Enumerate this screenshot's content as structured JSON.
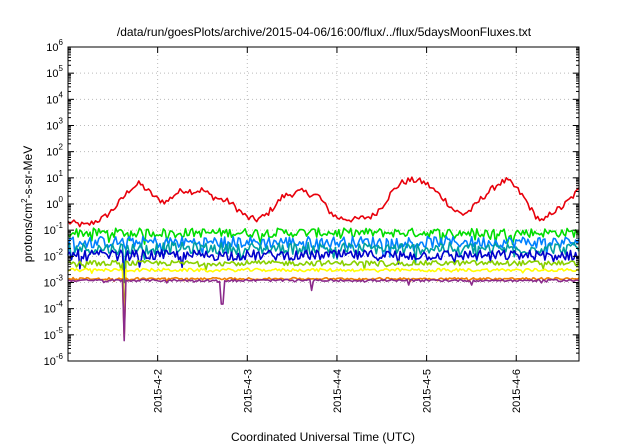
{
  "chart_data": {
    "type": "line",
    "title": "/data/run/goesPlots/archive/2015-04-06/16:00/flux/../flux/5daysMoonFluxes.txt",
    "xlabel": "Coordinated Universal Time (UTC)",
    "ylabel": "protons/cm2-s-sr-MeV",
    "ylabel_parts": {
      "base": "protons/cm",
      "sup": "2",
      "rest": "-s-sr-MeV"
    },
    "yscale": "log",
    "ylim_exp": [
      -6,
      6
    ],
    "ytick_base": "10",
    "yticks_exp": [
      -6,
      -5,
      -4,
      -3,
      -2,
      -1,
      0,
      1,
      2,
      3,
      4,
      5,
      6
    ],
    "xlim_days": [
      0,
      5.7
    ],
    "xticks": [
      {
        "day": 1,
        "label": "2015-4-2"
      },
      {
        "day": 2,
        "label": "2015-4-3"
      },
      {
        "day": 3,
        "label": "2015-4-4"
      },
      {
        "day": 4,
        "label": "2015-4-5"
      },
      {
        "day": 5,
        "label": "2015-4-6"
      }
    ],
    "grid": true,
    "series": [
      {
        "color": "#e8000b",
        "x": [
          0.0,
          0.2,
          0.4,
          0.5,
          0.6,
          0.7,
          0.8,
          0.9,
          1.0,
          1.1,
          1.2,
          1.3,
          1.4,
          1.5,
          1.6,
          1.7,
          1.8,
          1.9,
          2.0,
          2.1,
          2.2,
          2.3,
          2.4,
          2.6,
          2.8,
          2.9,
          3.0,
          3.2,
          3.4,
          3.5,
          3.6,
          3.7,
          3.8,
          3.9,
          4.0,
          4.1,
          4.2,
          4.3,
          4.4,
          4.5,
          4.6,
          4.7,
          4.8,
          4.9,
          5.0,
          5.1,
          5.2,
          5.3,
          5.4,
          5.5,
          5.6,
          5.7
        ],
        "y": [
          0.2,
          0.15,
          0.3,
          0.6,
          1.5,
          4,
          6,
          3,
          1.5,
          1.2,
          2.5,
          3.5,
          3,
          3.5,
          2,
          1.5,
          1.2,
          0.6,
          0.3,
          0.25,
          0.35,
          0.8,
          2,
          3,
          2,
          0.6,
          0.3,
          0.25,
          0.35,
          0.8,
          2.5,
          6,
          8,
          8,
          6,
          3,
          1.5,
          0.6,
          0.4,
          0.6,
          1.5,
          3,
          6,
          8,
          4,
          1.5,
          0.4,
          0.2,
          0.5,
          0.7,
          1.5,
          3.5
        ]
      },
      {
        "color": "#00dd00",
        "base": 0.08,
        "spread": 0.35,
        "dips": []
      },
      {
        "color": "#0080ff",
        "base": 0.035,
        "spread": 0.45,
        "dips": []
      },
      {
        "color": "#00a0a0",
        "base": 0.02,
        "spread": 0.45,
        "dips": [
          {
            "x": 0.62,
            "y": 0.002
          }
        ]
      },
      {
        "color": "#0000cc",
        "base": 0.011,
        "spread": 0.4,
        "dips": [
          {
            "x": 0.62,
            "y": 0.001
          }
        ]
      },
      {
        "color": "#88d000",
        "base": 0.0055,
        "spread": 0.2,
        "dips": [
          {
            "x": 0.62,
            "y": 3e-05
          }
        ]
      },
      {
        "color": "#ffff00",
        "base": 0.003,
        "spread": 0.12,
        "dips": [
          {
            "x": 0.62,
            "y": 1.5e-05
          }
        ]
      },
      {
        "color": "#f08000",
        "base": 0.0014,
        "spread": 0.08,
        "dips": [
          {
            "x": 0.62,
            "y": 8e-06
          }
        ]
      },
      {
        "color": "#8b2a8b",
        "base": 0.0012,
        "spread": 0.08,
        "dips": [
          {
            "x": 0.62,
            "y": 6e-06
          },
          {
            "x": 1.72,
            "y": 0.00015
          },
          {
            "x": 2.72,
            "y": 0.0005
          },
          {
            "x": 3.8,
            "y": 0.0008
          },
          {
            "x": 4.5,
            "y": 0.0008
          }
        ]
      }
    ]
  }
}
